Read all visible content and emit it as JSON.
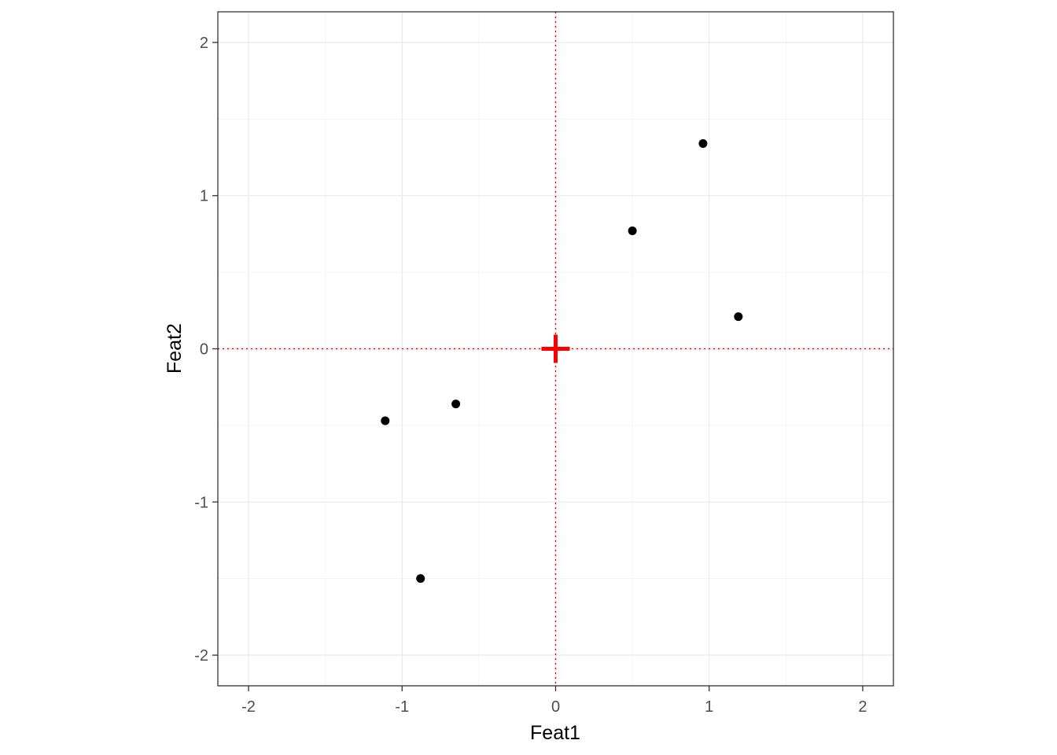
{
  "chart_data": {
    "type": "scatter",
    "title": "",
    "xlabel": "Feat1",
    "ylabel": "Feat2",
    "xlim": [
      -2.2,
      2.2
    ],
    "ylim": [
      -2.2,
      2.2
    ],
    "x_ticks": [
      -2,
      -1,
      0,
      1,
      2
    ],
    "y_ticks": [
      -2,
      -1,
      0,
      1,
      2
    ],
    "x_tick_labels": [
      "-2",
      "-1",
      "0",
      "1",
      "2"
    ],
    "y_tick_labels": [
      "-2",
      "-1",
      "0",
      "1",
      "2"
    ],
    "grid": true,
    "points": [
      {
        "x": -1.11,
        "y": -0.47
      },
      {
        "x": -0.65,
        "y": -0.36
      },
      {
        "x": -0.88,
        "y": -1.5
      },
      {
        "x": 0.5,
        "y": 0.77
      },
      {
        "x": 0.96,
        "y": 1.34
      },
      {
        "x": 1.19,
        "y": 0.21
      }
    ],
    "center_marker": {
      "x": 0,
      "y": 0,
      "shape": "plus",
      "color": "#ff0000"
    },
    "reference_lines": {
      "x": 0,
      "y": 0,
      "style": "dotted",
      "color": "#ff0000"
    },
    "point_color": "#000000"
  }
}
